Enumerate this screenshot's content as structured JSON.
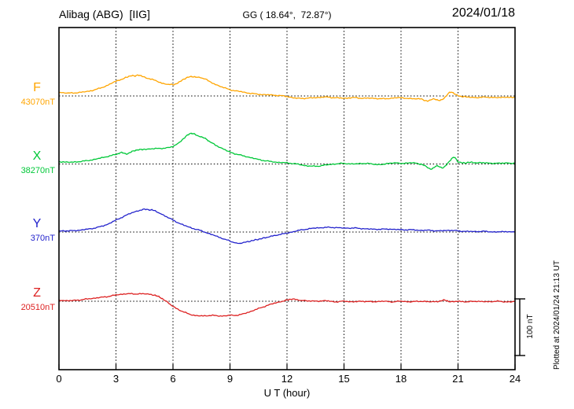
{
  "header": {
    "station": "Alibag (ABG)  [IIG]",
    "coords": "GG ( 18.64°,  72.87°)",
    "date": "2024/01/18"
  },
  "axis": {
    "x_label": "U T (hour)",
    "x_ticks": [
      "0",
      "3",
      "6",
      "9",
      "12",
      "15",
      "18",
      "21",
      "24"
    ]
  },
  "scale_bar": {
    "label": "100 nT",
    "nT": 100
  },
  "footer_note": "Plotted at 2024/01/24 21:13 UT",
  "chart_data": {
    "type": "line",
    "title": "Alibag (ABG) [IIG] magnetogram 2024/01/18",
    "xlabel": "U T (hour)",
    "x_range": [
      0,
      24
    ],
    "x_tick_interval": 3,
    "grid": "dotted vertical lines every 3 h; dotted horizontal baseline per trace",
    "legend_position": "left baseline labels",
    "scale_bar_nT": 100,
    "series": [
      {
        "name": "F",
        "color": "#ffa500",
        "baseline_label": "43070nT",
        "baseline_nT": 43070,
        "points": [
          [
            0,
            6
          ],
          [
            0.5,
            5
          ],
          [
            1,
            6
          ],
          [
            1.5,
            8
          ],
          [
            2,
            12
          ],
          [
            2.5,
            18
          ],
          [
            3,
            26
          ],
          [
            3.5,
            32
          ],
          [
            3.8,
            36
          ],
          [
            4,
            35
          ],
          [
            4.2,
            37
          ],
          [
            4.5,
            33
          ],
          [
            5,
            28
          ],
          [
            5.5,
            22
          ],
          [
            6,
            20
          ],
          [
            6.3,
            24
          ],
          [
            6.7,
            32
          ],
          [
            7,
            34
          ],
          [
            7.3,
            33
          ],
          [
            7.7,
            30
          ],
          [
            8,
            24
          ],
          [
            8.5,
            17
          ],
          [
            9,
            11
          ],
          [
            9.5,
            8
          ],
          [
            10,
            5
          ],
          [
            10.5,
            3
          ],
          [
            11,
            2
          ],
          [
            11.5,
            1
          ],
          [
            12,
            -1
          ],
          [
            12.5,
            -4
          ],
          [
            13,
            -4
          ],
          [
            13.5,
            -3
          ],
          [
            14,
            -2
          ],
          [
            14.5,
            -3
          ],
          [
            15,
            -4
          ],
          [
            15.5,
            -3
          ],
          [
            16,
            -4
          ],
          [
            16.5,
            -4
          ],
          [
            17,
            -5
          ],
          [
            17.5,
            -4
          ],
          [
            18,
            -3
          ],
          [
            18.5,
            -5
          ],
          [
            19,
            -5
          ],
          [
            19.4,
            -9
          ],
          [
            19.7,
            -5
          ],
          [
            20,
            -8
          ],
          [
            20.3,
            -3
          ],
          [
            20.6,
            7
          ],
          [
            20.9,
            2
          ],
          [
            21.2,
            -1
          ],
          [
            21.6,
            -2
          ],
          [
            22,
            -3
          ],
          [
            22.5,
            -2
          ],
          [
            23,
            -3
          ],
          [
            23.5,
            -2
          ],
          [
            24,
            -3
          ]
        ]
      },
      {
        "name": "X",
        "color": "#00c838",
        "baseline_label": "38270nT",
        "baseline_nT": 38270,
        "points": [
          [
            0,
            4
          ],
          [
            0.5,
            3
          ],
          [
            1,
            4
          ],
          [
            1.5,
            6
          ],
          [
            2,
            9
          ],
          [
            2.5,
            13
          ],
          [
            3,
            17
          ],
          [
            3.3,
            20
          ],
          [
            3.6,
            18
          ],
          [
            3.9,
            23
          ],
          [
            4.2,
            25
          ],
          [
            4.5,
            26
          ],
          [
            5,
            27
          ],
          [
            5.5,
            28
          ],
          [
            6,
            31
          ],
          [
            6.5,
            43
          ],
          [
            6.8,
            52
          ],
          [
            7,
            54
          ],
          [
            7.3,
            50
          ],
          [
            7.7,
            45
          ],
          [
            8,
            38
          ],
          [
            8.5,
            29
          ],
          [
            9,
            21
          ],
          [
            9.5,
            16
          ],
          [
            10,
            12
          ],
          [
            10.5,
            8
          ],
          [
            11,
            5
          ],
          [
            11.5,
            3
          ],
          [
            12,
            2
          ],
          [
            12.5,
            0
          ],
          [
            13,
            -3
          ],
          [
            13.5,
            -4
          ],
          [
            14,
            -2
          ],
          [
            14.5,
            0
          ],
          [
            15,
            1
          ],
          [
            15.5,
            0
          ],
          [
            16,
            1
          ],
          [
            16.5,
            0
          ],
          [
            17,
            -1
          ],
          [
            17.5,
            2
          ],
          [
            18,
            1
          ],
          [
            18.5,
            2
          ],
          [
            19,
            0
          ],
          [
            19.3,
            -4
          ],
          [
            19.6,
            -9
          ],
          [
            19.9,
            -3
          ],
          [
            20.2,
            -7
          ],
          [
            20.5,
            3
          ],
          [
            20.8,
            12
          ],
          [
            21,
            4
          ],
          [
            21.3,
            2
          ],
          [
            21.7,
            3
          ],
          [
            22,
            2
          ],
          [
            22.5,
            2
          ],
          [
            23,
            1
          ],
          [
            23.5,
            2
          ],
          [
            24,
            1
          ]
        ]
      },
      {
        "name": "Y",
        "color": "#2222cc",
        "baseline_label": "370nT",
        "baseline_nT": 370,
        "points": [
          [
            0,
            2
          ],
          [
            0.5,
            2
          ],
          [
            1,
            3
          ],
          [
            1.5,
            5
          ],
          [
            2,
            8
          ],
          [
            2.5,
            13
          ],
          [
            3,
            21
          ],
          [
            3.5,
            29
          ],
          [
            4,
            36
          ],
          [
            4.5,
            40
          ],
          [
            4.8,
            39
          ],
          [
            5,
            38
          ],
          [
            5.5,
            30
          ],
          [
            6,
            21
          ],
          [
            6.5,
            13
          ],
          [
            7,
            7
          ],
          [
            7.5,
            2
          ],
          [
            8,
            -4
          ],
          [
            8.5,
            -10
          ],
          [
            9,
            -16
          ],
          [
            9.4,
            -20
          ],
          [
            9.8,
            -18
          ],
          [
            10.2,
            -15
          ],
          [
            10.6,
            -12
          ],
          [
            11,
            -9
          ],
          [
            11.5,
            -5
          ],
          [
            12,
            -2
          ],
          [
            12.5,
            2
          ],
          [
            13,
            5
          ],
          [
            13.5,
            7
          ],
          [
            14,
            8
          ],
          [
            14.5,
            8
          ],
          [
            15,
            7
          ],
          [
            15.5,
            7
          ],
          [
            16,
            6
          ],
          [
            16.5,
            5
          ],
          [
            17,
            5
          ],
          [
            17.5,
            5
          ],
          [
            18,
            4
          ],
          [
            18.5,
            4
          ],
          [
            19,
            3
          ],
          [
            19.5,
            3
          ],
          [
            20,
            2
          ],
          [
            20.5,
            3
          ],
          [
            21,
            2
          ],
          [
            21.5,
            1
          ],
          [
            22,
            1
          ],
          [
            22.5,
            1
          ],
          [
            23,
            0
          ],
          [
            23.5,
            1
          ],
          [
            24,
            0
          ]
        ]
      },
      {
        "name": "Z",
        "color": "#dd2222",
        "baseline_label": "20510nT",
        "baseline_nT": 20510,
        "points": [
          [
            0,
            2
          ],
          [
            0.5,
            1
          ],
          [
            1,
            2
          ],
          [
            1.5,
            4
          ],
          [
            2,
            6
          ],
          [
            2.5,
            8
          ],
          [
            3,
            11
          ],
          [
            3.5,
            13
          ],
          [
            4,
            13
          ],
          [
            4.5,
            13
          ],
          [
            5,
            11
          ],
          [
            5.3,
            7
          ],
          [
            5.6,
            1
          ],
          [
            6,
            -9
          ],
          [
            6.5,
            -18
          ],
          [
            7,
            -24
          ],
          [
            7.5,
            -26
          ],
          [
            8,
            -25
          ],
          [
            8.5,
            -26
          ],
          [
            9,
            -25
          ],
          [
            9.5,
            -24
          ],
          [
            10,
            -19
          ],
          [
            10.5,
            -13
          ],
          [
            11,
            -7
          ],
          [
            11.5,
            -2
          ],
          [
            12,
            2
          ],
          [
            12.3,
            4
          ],
          [
            12.6,
            2
          ],
          [
            13,
            1
          ],
          [
            13.5,
            0
          ],
          [
            14,
            1
          ],
          [
            14.5,
            -1
          ],
          [
            15,
            0
          ],
          [
            15.5,
            -1
          ],
          [
            16,
            0
          ],
          [
            16.5,
            -1
          ],
          [
            17,
            0
          ],
          [
            17.5,
            -1
          ],
          [
            18,
            0
          ],
          [
            18.5,
            -1
          ],
          [
            19,
            0
          ],
          [
            19.5,
            -1
          ],
          [
            20,
            0
          ],
          [
            20.3,
            2
          ],
          [
            20.6,
            -1
          ],
          [
            21,
            0
          ],
          [
            21.5,
            -1
          ],
          [
            22,
            0
          ],
          [
            22.5,
            -1
          ],
          [
            23,
            0
          ],
          [
            23.5,
            -1
          ],
          [
            24,
            0
          ]
        ]
      }
    ]
  }
}
